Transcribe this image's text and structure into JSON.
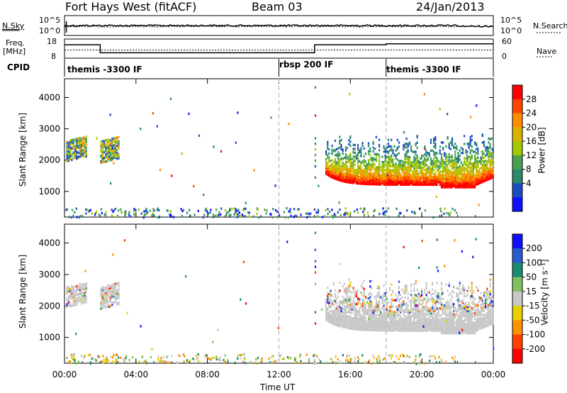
{
  "header": {
    "station": "Fort Hays West (fitACF)",
    "beam": "Beam 03",
    "date": "24/Jan/2013"
  },
  "nsky_panel": {
    "left_label": "N.Sky",
    "right_label": "N.Search",
    "left_ticks": [
      "10^5",
      "10^0"
    ],
    "right_ticks": [
      "10^5",
      "10^0"
    ]
  },
  "freq_panel": {
    "left_label_line1": "Freq.",
    "left_label_line2": "[MHz]",
    "right_label": "Nave",
    "left_ticks": [
      "18",
      "8"
    ],
    "right_ticks": [
      "60",
      "0"
    ]
  },
  "cpid": {
    "label": "CPID",
    "segments": [
      {
        "start_ut": 0,
        "text": "themis -3300 IF"
      },
      {
        "start_ut": 12,
        "text": "rbsp 200 IF"
      },
      {
        "start_ut": 18,
        "text": "themis -3300 IF"
      }
    ]
  },
  "power_colorbar": {
    "label": "Power [dB]",
    "ticks": [
      "28",
      "24",
      "20",
      "16",
      "12",
      "8",
      "4"
    ],
    "colors": [
      "#ff0000",
      "#ff4400",
      "#ff8c00",
      "#d8b400",
      "#a2c800",
      "#4aa050",
      "#2a8a6a",
      "#1a4cc0",
      "#1010ff"
    ]
  },
  "velocity_colorbar": {
    "label": "Velocity [m s⁻¹]",
    "ticks": [
      "200",
      "100",
      "50",
      "15",
      "-15",
      "-50",
      "-100",
      "-200"
    ],
    "colors": [
      "#1010ff",
      "#2a5ad0",
      "#1a8a70",
      "#80c060",
      "#c8c8c8",
      "#e8d000",
      "#ff9000",
      "#ff4000",
      "#ff0000"
    ]
  },
  "x_axis": {
    "label": "Time UT",
    "ticks": [
      "00:00",
      "04:00",
      "08:00",
      "12:00",
      "16:00",
      "20:00",
      "00:00"
    ]
  },
  "chart_data": [
    {
      "type": "heatmap",
      "ylabel": "Slant Range [km]",
      "xlabel": "",
      "ylim": [
        180,
        4600
      ],
      "xlim_ut_hours": [
        0,
        24
      ],
      "yticks": [
        1000,
        2000,
        3000,
        4000
      ],
      "quantity": "Power",
      "regions": [
        {
          "x": [
            0.1,
            1.2
          ],
          "y": [
            2000,
            2650
          ],
          "level": "mixed"
        },
        {
          "x": [
            2.0,
            3.0
          ],
          "y": [
            1950,
            2650
          ],
          "level": "mixed"
        },
        {
          "x": [
            14.6,
            24.0
          ],
          "y": [
            1150,
            3050
          ],
          "level": "strong-lower-edge"
        }
      ]
    },
    {
      "type": "heatmap",
      "ylabel": "Slant Range [km]",
      "xlabel": "Time UT",
      "ylim": [
        180,
        4600
      ],
      "xlim_ut_hours": [
        0,
        24
      ],
      "yticks": [
        1000,
        2000,
        3000,
        4000
      ],
      "quantity": "Velocity",
      "regions": [
        {
          "x": [
            0.1,
            1.2
          ],
          "y": [
            2000,
            2600
          ],
          "level": "low"
        },
        {
          "x": [
            2.0,
            3.0
          ],
          "y": [
            1950,
            2550
          ],
          "level": "low"
        },
        {
          "x": [
            14.6,
            24.0
          ],
          "y": [
            1200,
            2850
          ],
          "level": "mostly-low"
        }
      ]
    },
    {
      "type": "line",
      "title": "",
      "ylabel": "Freq. [MHz]",
      "ylim": [
        8,
        18
      ],
      "series": [
        {
          "x": [
            0,
            2.0,
            2.0,
            14.0,
            14.0,
            18.0,
            18.0,
            24.0
          ],
          "values": [
            15.0,
            15.0,
            10.8,
            10.8,
            15.0,
            15.0,
            15.5,
            15.5
          ]
        }
      ]
    }
  ]
}
